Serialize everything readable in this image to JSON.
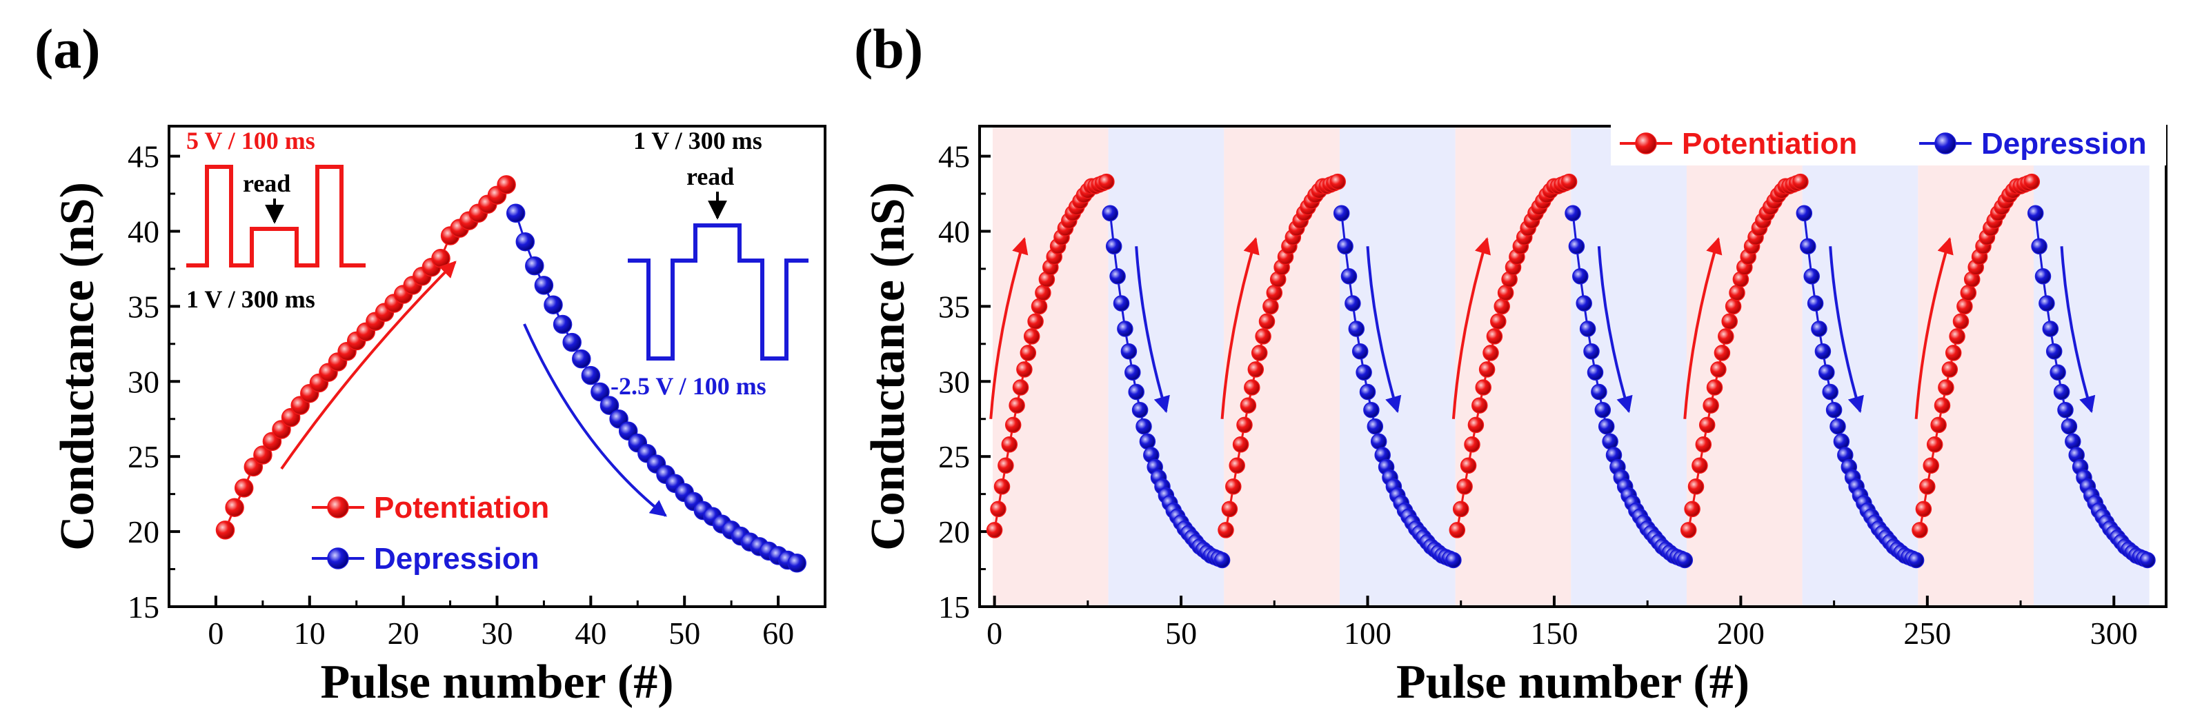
{
  "colors": {
    "potentiation": "#f01818",
    "depression": "#1a1ad8",
    "pot_bg": "#fde9e9",
    "dep_bg": "#e9ecfd"
  },
  "chart_data": [
    {
      "id": "a",
      "panel_label": "(a)",
      "type": "scatter",
      "xlabel": "Pulse number (#)",
      "ylabel": "Conductance (nS)",
      "xlim": [
        -5,
        65
      ],
      "ylim": [
        15,
        47
      ],
      "xticks": [
        0,
        10,
        20,
        30,
        40,
        50,
        60
      ],
      "yticks": [
        15,
        20,
        25,
        30,
        35,
        40,
        45
      ],
      "legend_position": "bottom-left",
      "series": [
        {
          "name": "Potentiation",
          "color": "#f01818",
          "x": [
            1,
            2,
            3,
            4,
            5,
            6,
            7,
            8,
            9,
            10,
            11,
            12,
            13,
            14,
            15,
            16,
            17,
            18,
            19,
            20,
            21,
            22,
            23,
            24,
            25,
            26,
            27,
            28,
            29,
            30,
            31
          ],
          "y": [
            20.1,
            21.6,
            22.9,
            24.3,
            25.1,
            26.0,
            26.8,
            27.6,
            28.4,
            29.2,
            29.9,
            30.6,
            31.3,
            32.0,
            32.7,
            33.3,
            34.0,
            34.6,
            35.2,
            35.8,
            36.4,
            37.0,
            37.6,
            38.2,
            39.7,
            40.2,
            40.7,
            41.2,
            41.8,
            42.4,
            43.1
          ]
        },
        {
          "name": "Depression",
          "color": "#1a1ad8",
          "x": [
            32,
            33,
            34,
            35,
            36,
            37,
            38,
            39,
            40,
            41,
            42,
            43,
            44,
            45,
            46,
            47,
            48,
            49,
            50,
            51,
            52,
            53,
            54,
            55,
            56,
            57,
            58,
            59,
            60,
            61,
            62
          ],
          "y": [
            41.2,
            39.3,
            37.7,
            36.4,
            35.1,
            33.8,
            32.6,
            31.5,
            30.4,
            29.3,
            28.4,
            27.5,
            26.7,
            25.9,
            25.2,
            24.5,
            23.8,
            23.2,
            22.6,
            22.0,
            21.4,
            21.0,
            20.5,
            20.1,
            19.7,
            19.3,
            19.0,
            18.7,
            18.4,
            18.1,
            17.9
          ]
        }
      ],
      "annotations": {
        "pot_pulse_top": "5 V / 100 ms",
        "pot_read": "read",
        "pot_pulse_bottom": "1 V / 300 ms",
        "dep_pulse_top": "1 V / 300 ms",
        "dep_read": "read",
        "dep_pulse_bottom": "-2.5 V / 100 ms"
      }
    },
    {
      "id": "b",
      "panel_label": "(b)",
      "type": "scatter",
      "xlabel": "Pulse number (#)",
      "ylabel": "Conductance (nS)",
      "xlim": [
        -4,
        314
      ],
      "ylim": [
        15,
        47
      ],
      "xticks": [
        0,
        50,
        100,
        150,
        200,
        250,
        300
      ],
      "yticks": [
        15,
        20,
        25,
        30,
        35,
        40,
        45
      ],
      "legend_position": "top-right",
      "cycles": 5,
      "cycle_period": 62,
      "potentiation_pulses_per_cycle": 31,
      "depression_pulses_per_cycle": 31,
      "series": [
        {
          "name": "Potentiation",
          "color": "#f01818",
          "y_per_cycle": [
            20.1,
            21.5,
            23.0,
            24.4,
            25.8,
            27.1,
            28.4,
            29.6,
            30.8,
            31.9,
            33.0,
            34.0,
            35.0,
            35.9,
            36.8,
            37.6,
            38.3,
            39.0,
            39.6,
            40.2,
            40.7,
            41.2,
            41.6,
            42.0,
            42.4,
            42.7,
            43.0,
            43.0,
            43.1,
            43.2,
            43.3
          ]
        },
        {
          "name": "Depression",
          "color": "#1a1ad8",
          "y_per_cycle": [
            41.2,
            39.0,
            37.0,
            35.2,
            33.5,
            32.0,
            30.6,
            29.3,
            28.1,
            27.0,
            26.0,
            25.1,
            24.3,
            23.6,
            23.0,
            22.4,
            21.9,
            21.4,
            21.0,
            20.6,
            20.2,
            19.9,
            19.6,
            19.3,
            19.0,
            18.8,
            18.6,
            18.4,
            18.3,
            18.2,
            18.1
          ]
        }
      ]
    }
  ]
}
